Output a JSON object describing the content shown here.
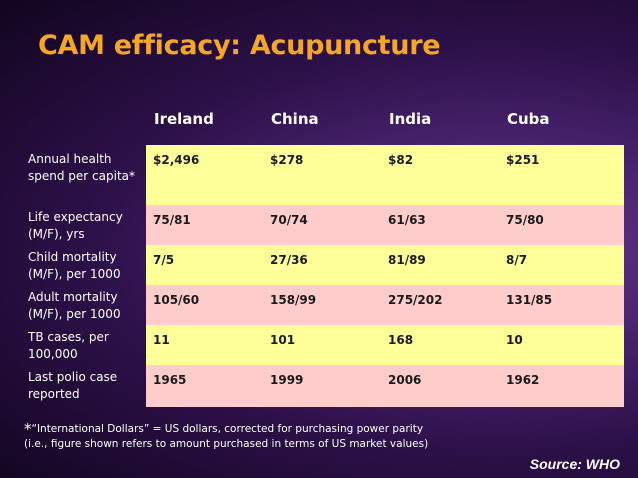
{
  "slide": {
    "title": "CAM efficacy: Acupuncture",
    "source": "Source: WHO"
  },
  "table": {
    "columns": [
      "Ireland",
      "China",
      "India",
      "Cuba"
    ],
    "rows": [
      {
        "label": "Annual health spend per capita*",
        "values": [
          "$2,496",
          "$278",
          "$82",
          "$251"
        ]
      },
      {
        "label": "Life expectancy (M/F), yrs",
        "values": [
          "75/81",
          "70/74",
          "61/63",
          "75/80"
        ]
      },
      {
        "label": "Child mortality (M/F), per 1000",
        "values": [
          "7/5",
          "27/36",
          "81/89",
          "8/7"
        ]
      },
      {
        "label": "Adult mortality (M/F), per 1000",
        "values": [
          "105/60",
          "158/99",
          "275/202",
          "131/85"
        ]
      },
      {
        "label": "TB cases, per 100,000",
        "values": [
          "11",
          "101",
          "168",
          "10"
        ]
      },
      {
        "label": "Last polio case reported",
        "values": [
          "1965",
          "1999",
          "2006",
          "1962"
        ]
      }
    ]
  },
  "footnote": {
    "star": "*",
    "line1": "“International Dollars” = US dollars, corrected for purchasing power parity",
    "line2": "(i.e., figure shown refers to amount purchased in terms of US market values)"
  }
}
